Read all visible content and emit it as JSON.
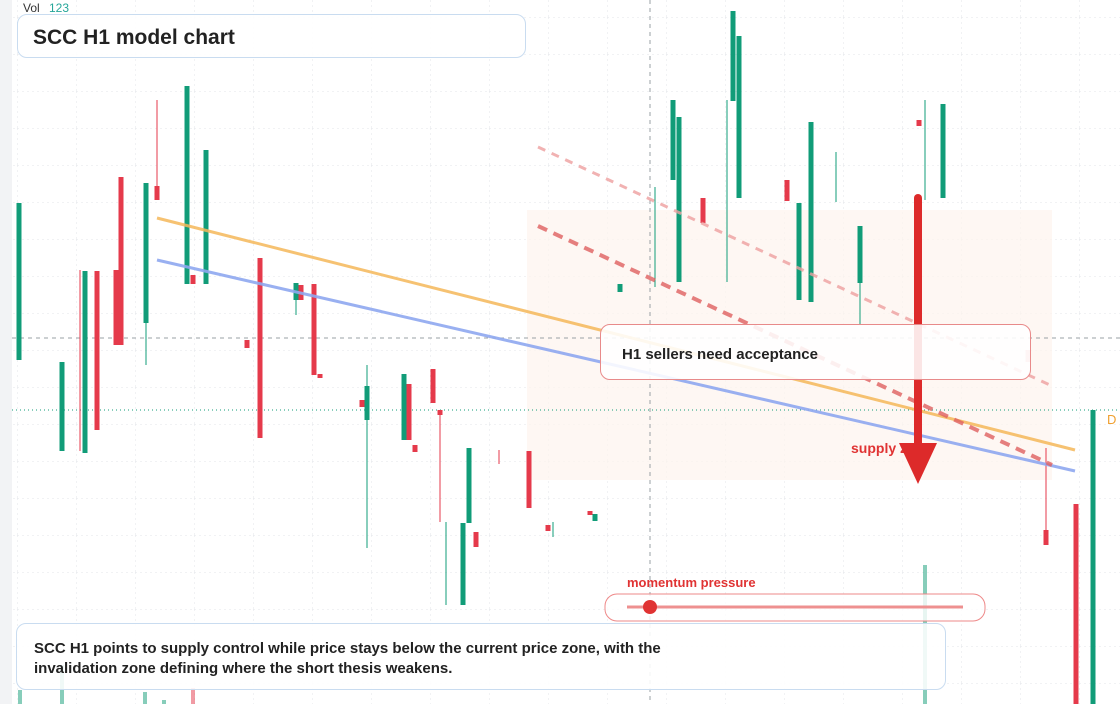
{
  "header": {
    "volume_label": "Vol",
    "volume_value": 123,
    "title": "SCC H1 model chart"
  },
  "annotations": {
    "callout": "H1 sellers need acceptance",
    "zone_label": "supply zone",
    "slider_label": "momentum pressure",
    "price_tag": "D"
  },
  "summary": "SCC H1 points to supply control while price stays below the current price zone, with the invalidation zone defining where the short thesis weakens."
}
